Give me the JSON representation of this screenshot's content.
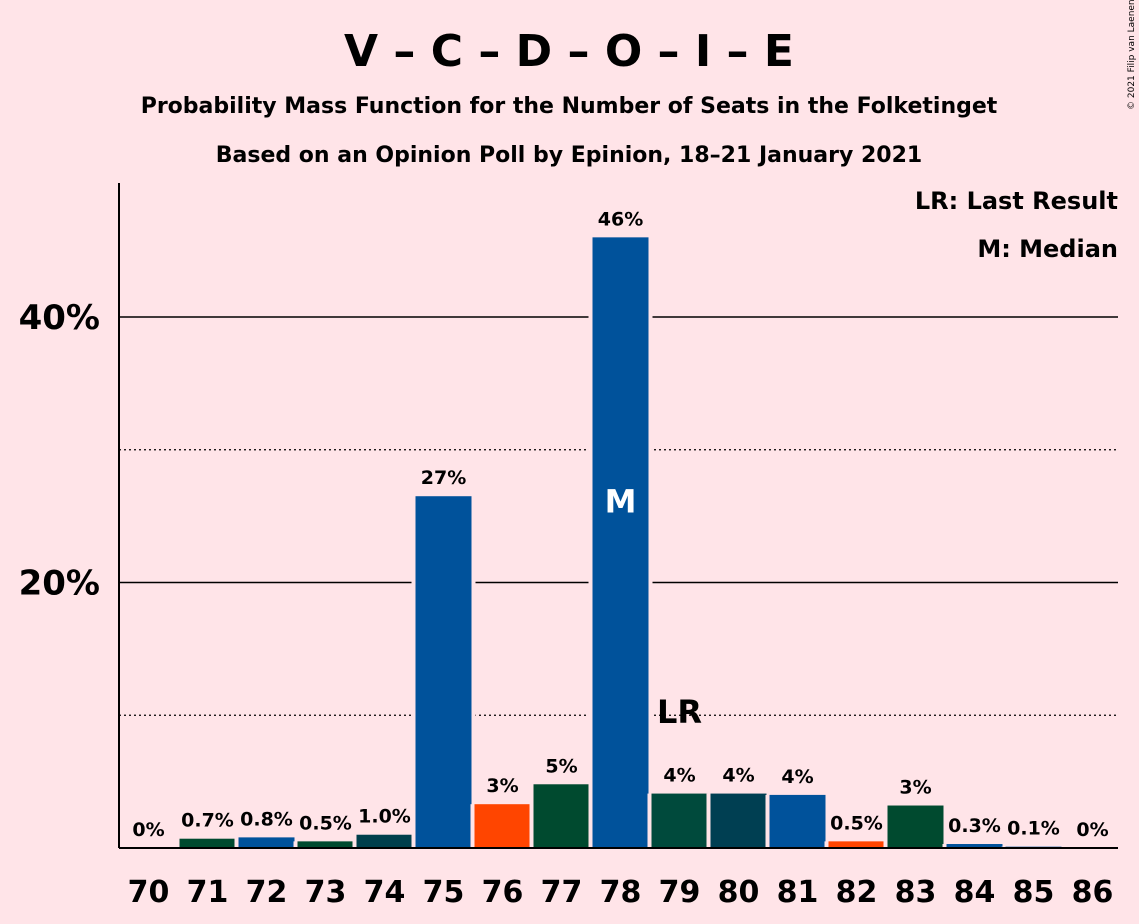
{
  "title": "V – C – D – O – I – E",
  "subtitle1": "Probability Mass Function for the Number of Seats in the Folketinget",
  "subtitle2": "Based on an Opinion Poll by Epinion, 18–21 January 2021",
  "copyright": "© 2021 Filip van Laenen",
  "legend": {
    "lr": "LR: Last Result",
    "m": "M: Median"
  },
  "chart_data": {
    "type": "bar",
    "categories": [
      "70",
      "71",
      "72",
      "73",
      "74",
      "75",
      "76",
      "77",
      "78",
      "79",
      "80",
      "81",
      "82",
      "83",
      "84",
      "85",
      "86"
    ],
    "values": [
      0,
      0.7,
      0.8,
      0.5,
      1.0,
      26.5,
      3.3,
      4.8,
      46.0,
      4.1,
      4.1,
      4.0,
      0.5,
      3.2,
      0.3,
      0.1,
      0
    ],
    "labels": [
      "0%",
      "0.7%",
      "0.8%",
      "0.5%",
      "1.0%",
      "27%",
      "3%",
      "5%",
      "46%",
      "4%",
      "4%",
      "4%",
      "0.5%",
      "3%",
      "0.3%",
      "0.1%",
      "0%"
    ],
    "colors": [
      "#00529B",
      "#004A2F",
      "#00529B",
      "#004A2F",
      "#003F4C",
      "#00529B",
      "#FF4500",
      "#004A2F",
      "#00529B",
      "#004A3C",
      "#003F52",
      "#00529B",
      "#FF4500",
      "#004A2F",
      "#00529B",
      "#00529B",
      "#00529B"
    ],
    "ylim": [
      0,
      50
    ],
    "yticks": [
      20,
      40
    ],
    "ytick_labels": [
      "20%",
      "40%"
    ],
    "dotted_gridlines": [
      10,
      30
    ],
    "median_category": "78",
    "median_marker": "M",
    "last_result_category": "79",
    "last_result_marker": "LR"
  }
}
